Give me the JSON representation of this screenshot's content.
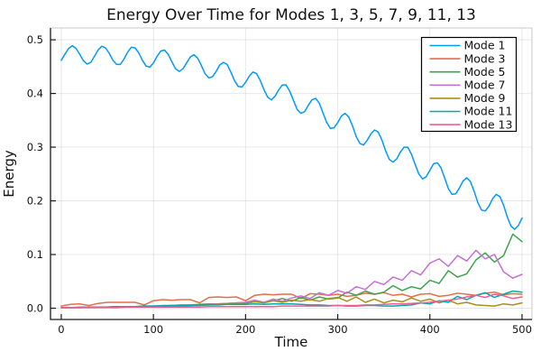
{
  "figure": {
    "background": "#ffffff"
  },
  "chart_data": {
    "type": "line",
    "title": "Energy Over Time for Modes 1, 3, 5, 7, 9, 11, 13",
    "xlabel": "Time",
    "ylabel": "Energy",
    "xlim": [
      -11.7,
      510.8
    ],
    "ylim": [
      -0.021,
      0.522
    ],
    "grid": true,
    "legend_position": "top-right",
    "xticks": {
      "values": [
        0,
        100,
        200,
        300,
        400,
        500
      ],
      "labels": [
        "0",
        "100",
        "200",
        "300",
        "400",
        "500"
      ]
    },
    "yticks": {
      "values": [
        0.0,
        0.1,
        0.2,
        0.3,
        0.4,
        0.5
      ],
      "labels": [
        "0.0",
        "0.1",
        "0.2",
        "0.3",
        "0.4",
        "0.5"
      ]
    },
    "series": [
      {
        "name": "Mode 1",
        "color": "#009AFA",
        "x_start": 0,
        "x_step": 4,
        "values": [
          0.462,
          0.473,
          0.484,
          0.489,
          0.484,
          0.473,
          0.461,
          0.455,
          0.458,
          0.469,
          0.481,
          0.488,
          0.485,
          0.475,
          0.462,
          0.454,
          0.454,
          0.464,
          0.477,
          0.486,
          0.485,
          0.476,
          0.462,
          0.451,
          0.449,
          0.457,
          0.469,
          0.479,
          0.481,
          0.473,
          0.459,
          0.446,
          0.441,
          0.446,
          0.457,
          0.468,
          0.472,
          0.466,
          0.452,
          0.437,
          0.429,
          0.431,
          0.441,
          0.453,
          0.458,
          0.454,
          0.44,
          0.424,
          0.413,
          0.412,
          0.421,
          0.432,
          0.44,
          0.437,
          0.424,
          0.407,
          0.393,
          0.388,
          0.395,
          0.407,
          0.416,
          0.416,
          0.404,
          0.387,
          0.37,
          0.363,
          0.366,
          0.378,
          0.388,
          0.391,
          0.382,
          0.364,
          0.346,
          0.335,
          0.336,
          0.346,
          0.358,
          0.363,
          0.356,
          0.34,
          0.32,
          0.307,
          0.304,
          0.313,
          0.325,
          0.332,
          0.328,
          0.313,
          0.293,
          0.277,
          0.272,
          0.278,
          0.291,
          0.3,
          0.3,
          0.287,
          0.268,
          0.25,
          0.241,
          0.245,
          0.257,
          0.269,
          0.271,
          0.262,
          0.243,
          0.223,
          0.212,
          0.213,
          0.224,
          0.237,
          0.243,
          0.236,
          0.218,
          0.197,
          0.183,
          0.181,
          0.19,
          0.204,
          0.212,
          0.208,
          0.192,
          0.17,
          0.153,
          0.147,
          0.154,
          0.168
        ]
      },
      {
        "name": "Mode 3",
        "color": "#E36F47",
        "x_start": 0,
        "x_step": 10,
        "values": [
          0.004,
          0.007,
          0.008,
          0.005,
          0.009,
          0.011,
          0.011,
          0.011,
          0.011,
          0.006,
          0.014,
          0.016,
          0.015,
          0.016,
          0.016,
          0.01,
          0.02,
          0.021,
          0.02,
          0.021,
          0.014,
          0.024,
          0.026,
          0.025,
          0.026,
          0.026,
          0.018,
          0.027,
          0.026,
          0.024,
          0.026,
          0.022,
          0.024,
          0.028,
          0.026,
          0.029,
          0.024,
          0.026,
          0.021,
          0.026,
          0.027,
          0.022,
          0.024,
          0.028,
          0.026,
          0.024,
          0.028,
          0.03,
          0.025,
          0.027,
          0.026
        ]
      },
      {
        "name": "Mode 5",
        "color": "#3DA44E",
        "x_start": 0,
        "x_step": 10,
        "values": [
          0.001,
          0.001,
          0.002,
          0.002,
          0.002,
          0.002,
          0.003,
          0.003,
          0.003,
          0.004,
          0.004,
          0.005,
          0.005,
          0.006,
          0.006,
          0.007,
          0.008,
          0.008,
          0.009,
          0.01,
          0.01,
          0.012,
          0.011,
          0.014,
          0.018,
          0.013,
          0.02,
          0.015,
          0.021,
          0.017,
          0.019,
          0.03,
          0.024,
          0.032,
          0.026,
          0.03,
          0.042,
          0.033,
          0.04,
          0.036,
          0.052,
          0.046,
          0.07,
          0.058,
          0.064,
          0.09,
          0.103,
          0.086,
          0.098,
          0.138,
          0.124
        ]
      },
      {
        "name": "Mode 7",
        "color": "#C371D2",
        "x_start": 0,
        "x_step": 10,
        "values": [
          0.001,
          0.001,
          0.001,
          0.002,
          0.002,
          0.002,
          0.002,
          0.003,
          0.003,
          0.003,
          0.004,
          0.004,
          0.005,
          0.005,
          0.006,
          0.006,
          0.007,
          0.008,
          0.009,
          0.01,
          0.011,
          0.015,
          0.011,
          0.017,
          0.013,
          0.019,
          0.023,
          0.018,
          0.029,
          0.024,
          0.033,
          0.028,
          0.04,
          0.035,
          0.05,
          0.044,
          0.058,
          0.052,
          0.07,
          0.062,
          0.084,
          0.092,
          0.078,
          0.098,
          0.088,
          0.108,
          0.092,
          0.1,
          0.068,
          0.056,
          0.063
        ]
      },
      {
        "name": "Mode 9",
        "color": "#AC8E18",
        "x_start": 0,
        "x_step": 10,
        "values": [
          0.001,
          0.001,
          0.001,
          0.001,
          0.002,
          0.002,
          0.002,
          0.002,
          0.002,
          0.003,
          0.003,
          0.003,
          0.004,
          0.004,
          0.005,
          0.005,
          0.006,
          0.007,
          0.008,
          0.008,
          0.009,
          0.012,
          0.01,
          0.014,
          0.011,
          0.015,
          0.013,
          0.016,
          0.013,
          0.018,
          0.02,
          0.013,
          0.021,
          0.011,
          0.017,
          0.01,
          0.015,
          0.012,
          0.019,
          0.013,
          0.017,
          0.01,
          0.015,
          0.008,
          0.011,
          0.006,
          0.005,
          0.004,
          0.008,
          0.006,
          0.01
        ]
      },
      {
        "name": "Mode 11",
        "color": "#00A9AD",
        "x_start": 0,
        "x_step": 10,
        "values": [
          0.001,
          0.001,
          0.001,
          0.002,
          0.002,
          0.002,
          0.003,
          0.003,
          0.003,
          0.004,
          0.004,
          0.004,
          0.005,
          0.005,
          0.005,
          0.006,
          0.006,
          0.006,
          0.007,
          0.007,
          0.007,
          0.008,
          0.007,
          0.008,
          0.008,
          0.008,
          0.007,
          0.006,
          0.006,
          0.005,
          0.005,
          0.004,
          0.004,
          0.005,
          0.005,
          0.004,
          0.004,
          0.005,
          0.006,
          0.01,
          0.008,
          0.014,
          0.011,
          0.022,
          0.016,
          0.024,
          0.029,
          0.02,
          0.026,
          0.032,
          0.03
        ]
      },
      {
        "name": "Mode 13",
        "color": "#ED5E93",
        "x_start": 0,
        "x_step": 10,
        "values": [
          0.001,
          0.001,
          0.001,
          0.001,
          0.001,
          0.001,
          0.001,
          0.002,
          0.002,
          0.002,
          0.002,
          0.002,
          0.002,
          0.002,
          0.002,
          0.002,
          0.003,
          0.003,
          0.003,
          0.003,
          0.003,
          0.003,
          0.003,
          0.003,
          0.004,
          0.004,
          0.004,
          0.004,
          0.004,
          0.004,
          0.005,
          0.005,
          0.005,
          0.006,
          0.006,
          0.007,
          0.008,
          0.008,
          0.009,
          0.01,
          0.011,
          0.013,
          0.015,
          0.017,
          0.021,
          0.024,
          0.02,
          0.026,
          0.023,
          0.018,
          0.021
        ]
      }
    ],
    "style": {
      "grid_color": "rgba(0,0,0,0.09)",
      "spine_color": "#1a1a1a",
      "box_color": "#c8c8c8",
      "legend_border_color": "#000000",
      "legend_bg_color": "#ffffff",
      "text_color": "#111111"
    }
  }
}
